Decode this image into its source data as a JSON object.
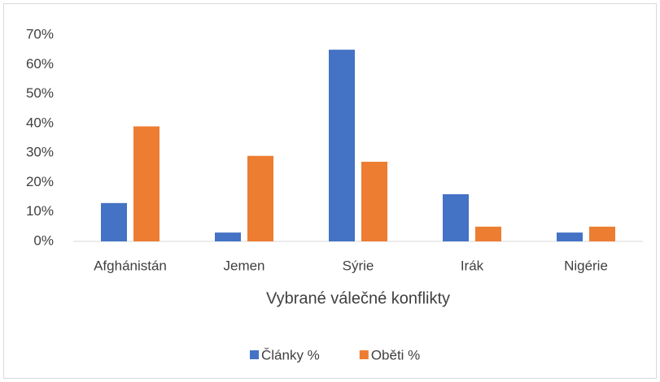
{
  "chart_data": {
    "type": "bar",
    "x_label": "Vybrané válečné konflikty",
    "categories": [
      "Afghánistán",
      "Jemen",
      "Sýrie",
      "Irák",
      "Nigérie"
    ],
    "series": [
      {
        "name": "Články %",
        "color": "#4472c4",
        "values": [
          13,
          3,
          65,
          16,
          3
        ]
      },
      {
        "name": "Oběti %",
        "color": "#ed7d31",
        "values": [
          39,
          29,
          27,
          5,
          5
        ]
      }
    ],
    "ylim": [
      0,
      70
    ],
    "yticks": [
      {
        "value": 0,
        "label": "0%"
      },
      {
        "value": 10,
        "label": "10%"
      },
      {
        "value": 20,
        "label": "20%"
      },
      {
        "value": 30,
        "label": "30%"
      },
      {
        "value": 40,
        "label": "40%"
      },
      {
        "value": 50,
        "label": "50%"
      },
      {
        "value": 60,
        "label": "60%"
      },
      {
        "value": 70,
        "label": "70%"
      }
    ],
    "grid": false,
    "legend": "bottom"
  }
}
